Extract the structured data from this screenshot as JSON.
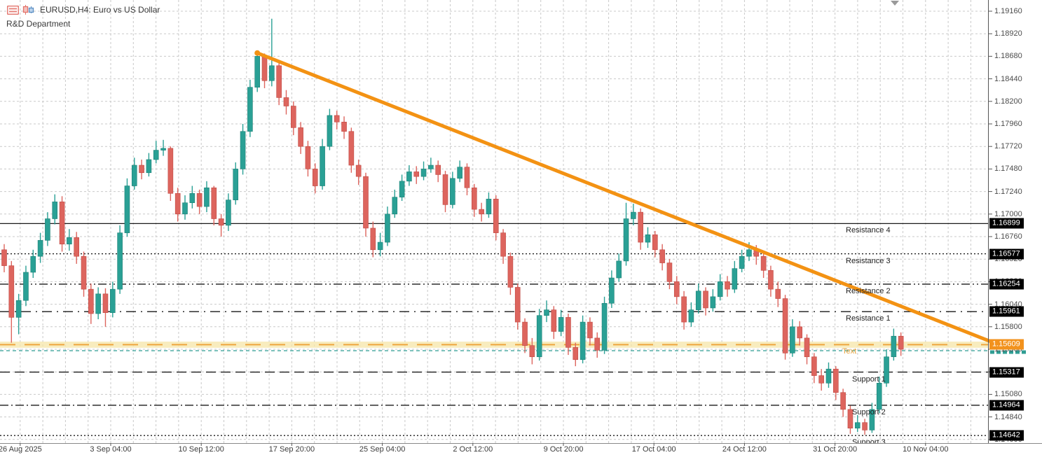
{
  "header": {
    "title": "EURUSD,H4: Euro vs US Dollar",
    "subtitle": "R&D Department",
    "icons": [
      "chart-list-icon",
      "candlestick-chart-icon"
    ]
  },
  "colors": {
    "candle_up": "#2aa095",
    "candle_up_dark": "#1d8176",
    "candle_down": "#dd655e",
    "candle_down_dark": "#c04a44",
    "trendline": "#f39213",
    "orange_level": "#eda63f",
    "orange_tag_bg": "#f2921d",
    "current_price": "#2f9d93",
    "grid": "#c9c9c9",
    "level_black": "#1a1a1a",
    "yellow_zone": "#f6e6a8"
  },
  "chart_data": {
    "type": "candlestick",
    "symbol": "EURUSD",
    "timeframe": "H4",
    "title": "EURUSD,H4: Euro vs US Dollar",
    "grid": true,
    "price_axis": {
      "top": 1.1916,
      "step": 0.0024,
      "labels": [
        "1.19160",
        "1.18920",
        "1.18680",
        "1.18440",
        "1.18200",
        "1.17960",
        "1.17720",
        "1.17480",
        "1.17240",
        "1.17000",
        "1.16760",
        "1.16520",
        "1.16280",
        "1.16040",
        "1.15800",
        "1.15560",
        "1.15320",
        "1.15080",
        "1.14840",
        "1.14600"
      ]
    },
    "time_axis": {
      "labels": [
        "26 Aug 2025",
        "3 Sep 04:00",
        "10 Sep 12:00",
        "17 Sep 20:00",
        "25 Sep 04:00",
        "2 Oct 12:00",
        "9 Oct 20:00",
        "17 Oct 04:00",
        "24 Oct 12:00",
        "31 Oct 20:00",
        "10 Nov 04:00"
      ]
    },
    "levels": [
      {
        "label": "Resistance 4",
        "price": 1.16899,
        "tag": "1.16899",
        "style": "solid",
        "color": "black",
        "clipped": false
      },
      {
        "label": "Resistance 3",
        "price": 1.16577,
        "tag": "1.16577",
        "style": "dot",
        "color": "black",
        "clipped": false
      },
      {
        "label": "Resistance 2",
        "price": 1.16254,
        "tag": "1.16254",
        "style": "dashdotdot",
        "color": "black",
        "clipped": false
      },
      {
        "label": "Resistance 1",
        "price": 1.15961,
        "tag": "1.15961",
        "style": "longdashdot",
        "color": "black",
        "clipped": false
      },
      {
        "label": "Text",
        "price": 1.15609,
        "tag": "1.15609",
        "style": "orangedash",
        "color": "orange",
        "clipped": false
      },
      {
        "label": "Support 1",
        "price": 1.15317,
        "tag": "1.15317",
        "style": "longdash",
        "color": "black",
        "clipped": false
      },
      {
        "label": "Support 2",
        "price": 1.14964,
        "tag": "1.14964",
        "style": "dashdot",
        "color": "black",
        "clipped": false
      },
      {
        "label": "Support 3",
        "price": 1.14642,
        "tag": "1.14642",
        "style": "dot",
        "color": "black",
        "clipped": true
      }
    ],
    "current_price_line": {
      "price": 1.15545,
      "style": "dash",
      "color": "teal",
      "tag_visible": false
    },
    "trendline": {
      "bar_index": 35,
      "price1": 1.18715,
      "price2": 1.15645,
      "direction": "down"
    },
    "zones": [
      {
        "top_price": 1.15642,
        "bottom_price": 1.15576,
        "color": "#f6e6a8"
      }
    ],
    "first_open": 1.1662,
    "candles_format": [
      "high",
      "low",
      "close"
    ],
    "candles": [
      [
        1.1668,
        1.1638,
        1.1645
      ],
      [
        1.165,
        1.1563,
        1.159
      ],
      [
        1.1615,
        1.1572,
        1.1608
      ],
      [
        1.1645,
        1.1602,
        1.1638
      ],
      [
        1.1662,
        1.1632,
        1.1655
      ],
      [
        1.168,
        1.1648,
        1.1672
      ],
      [
        1.1702,
        1.1666,
        1.1695
      ],
      [
        1.1721,
        1.1689,
        1.1713
      ],
      [
        1.1719,
        1.166,
        1.1668
      ],
      [
        1.1684,
        1.1661,
        1.1675
      ],
      [
        1.1681,
        1.1647,
        1.1655
      ],
      [
        1.166,
        1.1612,
        1.162
      ],
      [
        1.1626,
        1.1583,
        1.1594
      ],
      [
        1.1622,
        1.1588,
        1.1615
      ],
      [
        1.1621,
        1.158,
        1.1595
      ],
      [
        1.1628,
        1.159,
        1.162
      ],
      [
        1.1688,
        1.1615,
        1.168
      ],
      [
        1.1738,
        1.1676,
        1.173
      ],
      [
        1.176,
        1.1726,
        1.1752
      ],
      [
        1.1758,
        1.1737,
        1.1744
      ],
      [
        1.1765,
        1.174,
        1.1758
      ],
      [
        1.1778,
        1.1754,
        1.1768
      ],
      [
        1.1779,
        1.1762,
        1.177
      ],
      [
        1.1772,
        1.1714,
        1.1722
      ],
      [
        1.1728,
        1.1692,
        1.17
      ],
      [
        1.172,
        1.1694,
        1.1712
      ],
      [
        1.173,
        1.1706,
        1.1722
      ],
      [
        1.1726,
        1.17,
        1.1708
      ],
      [
        1.1735,
        1.1702,
        1.1728
      ],
      [
        1.173,
        1.1688,
        1.1695
      ],
      [
        1.17,
        1.1676,
        1.1688
      ],
      [
        1.1722,
        1.1682,
        1.1715
      ],
      [
        1.1755,
        1.171,
        1.1748
      ],
      [
        1.1796,
        1.1742,
        1.1788
      ],
      [
        1.1843,
        1.1782,
        1.1835
      ],
      [
        1.1874,
        1.183,
        1.1868
      ],
      [
        1.1871,
        1.1834,
        1.1842
      ],
      [
        1.1908,
        1.1836,
        1.1858
      ],
      [
        1.1862,
        1.1816,
        1.1824
      ],
      [
        1.1832,
        1.1806,
        1.1815
      ],
      [
        1.182,
        1.1784,
        1.1792
      ],
      [
        1.1798,
        1.1764,
        1.1772
      ],
      [
        1.1778,
        1.174,
        1.1748
      ],
      [
        1.1754,
        1.1722,
        1.173
      ],
      [
        1.178,
        1.1726,
        1.1772
      ],
      [
        1.1812,
        1.1768,
        1.1805
      ],
      [
        1.181,
        1.179,
        1.1798
      ],
      [
        1.1804,
        1.178,
        1.1788
      ],
      [
        1.1792,
        1.1744,
        1.1752
      ],
      [
        1.1758,
        1.1731,
        1.174
      ],
      [
        1.1744,
        1.1676,
        1.1685
      ],
      [
        1.1692,
        1.1654,
        1.1662
      ],
      [
        1.168,
        1.1655,
        1.167
      ],
      [
        1.1708,
        1.1666,
        1.17
      ],
      [
        1.1726,
        1.1696,
        1.1718
      ],
      [
        1.1742,
        1.1714,
        1.1735
      ],
      [
        1.1752,
        1.173,
        1.1745
      ],
      [
        1.1751,
        1.1732,
        1.174
      ],
      [
        1.1756,
        1.1736,
        1.1748
      ],
      [
        1.176,
        1.1744,
        1.1752
      ],
      [
        1.1757,
        1.1734,
        1.1742
      ],
      [
        1.1746,
        1.1702,
        1.171
      ],
      [
        1.1745,
        1.1706,
        1.1738
      ],
      [
        1.1757,
        1.1734,
        1.175
      ],
      [
        1.1754,
        1.172,
        1.1728
      ],
      [
        1.1732,
        1.1697,
        1.1705
      ],
      [
        1.1712,
        1.1692,
        1.17
      ],
      [
        1.1723,
        1.1696,
        1.1716
      ],
      [
        1.172,
        1.1672,
        1.168
      ],
      [
        1.1684,
        1.1647,
        1.1655
      ],
      [
        1.1659,
        1.1614,
        1.1622
      ],
      [
        1.1626,
        1.1577,
        1.1585
      ],
      [
        1.1589,
        1.1552,
        1.156
      ],
      [
        1.1568,
        1.154,
        1.1548
      ],
      [
        1.1599,
        1.1544,
        1.1592
      ],
      [
        1.1608,
        1.1585,
        1.1598
      ],
      [
        1.1602,
        1.1567,
        1.1575
      ],
      [
        1.1598,
        1.157,
        1.159
      ],
      [
        1.1594,
        1.155,
        1.1558
      ],
      [
        1.1563,
        1.1538,
        1.1545
      ],
      [
        1.1592,
        1.1541,
        1.1585
      ],
      [
        1.159,
        1.156,
        1.1568
      ],
      [
        1.1574,
        1.1547,
        1.1555
      ],
      [
        1.1612,
        1.1551,
        1.1605
      ],
      [
        1.164,
        1.16,
        1.1632
      ],
      [
        1.1658,
        1.1628,
        1.165
      ],
      [
        1.1712,
        1.1645,
        1.1695
      ],
      [
        1.1711,
        1.1688,
        1.1702
      ],
      [
        1.1706,
        1.1662,
        1.167
      ],
      [
        1.1686,
        1.1664,
        1.1678
      ],
      [
        1.1682,
        1.1654,
        1.1662
      ],
      [
        1.1668,
        1.164,
        1.1648
      ],
      [
        1.1652,
        1.162,
        1.1628
      ],
      [
        1.1634,
        1.1604,
        1.1612
      ],
      [
        1.1618,
        1.1577,
        1.1585
      ],
      [
        1.1606,
        1.158,
        1.1598
      ],
      [
        1.1626,
        1.1594,
        1.1618
      ],
      [
        1.1622,
        1.1592,
        1.16
      ],
      [
        1.162,
        1.1596,
        1.1612
      ],
      [
        1.1636,
        1.1608,
        1.1628
      ],
      [
        1.1634,
        1.1612,
        1.162
      ],
      [
        1.165,
        1.1616,
        1.1642
      ],
      [
        1.1662,
        1.1638,
        1.1655
      ],
      [
        1.167,
        1.165,
        1.1662
      ],
      [
        1.1667,
        1.1646,
        1.1655
      ],
      [
        1.166,
        1.1632,
        1.164
      ],
      [
        1.1645,
        1.1612,
        1.162
      ],
      [
        1.1628,
        1.1601,
        1.161
      ],
      [
        1.1614,
        1.1545,
        1.1552
      ],
      [
        1.1588,
        1.1548,
        1.158
      ],
      [
        1.1586,
        1.156,
        1.1568
      ],
      [
        1.1572,
        1.154,
        1.1548
      ],
      [
        1.1552,
        1.152,
        1.1528
      ],
      [
        1.1535,
        1.1512,
        1.152
      ],
      [
        1.1542,
        1.1515,
        1.1535
      ],
      [
        1.1538,
        1.1502,
        1.151
      ],
      [
        1.1514,
        1.1484,
        1.1492
      ],
      [
        1.1496,
        1.1466,
        1.1472
      ],
      [
        1.1486,
        1.1468,
        1.1478
      ],
      [
        1.1482,
        1.1465,
        1.147
      ],
      [
        1.1499,
        1.1467,
        1.1492
      ],
      [
        1.1527,
        1.1488,
        1.152
      ],
      [
        1.1556,
        1.1516,
        1.1548
      ],
      [
        1.1578,
        1.1544,
        1.157
      ],
      [
        1.1574,
        1.1549,
        1.1556
      ]
    ]
  }
}
